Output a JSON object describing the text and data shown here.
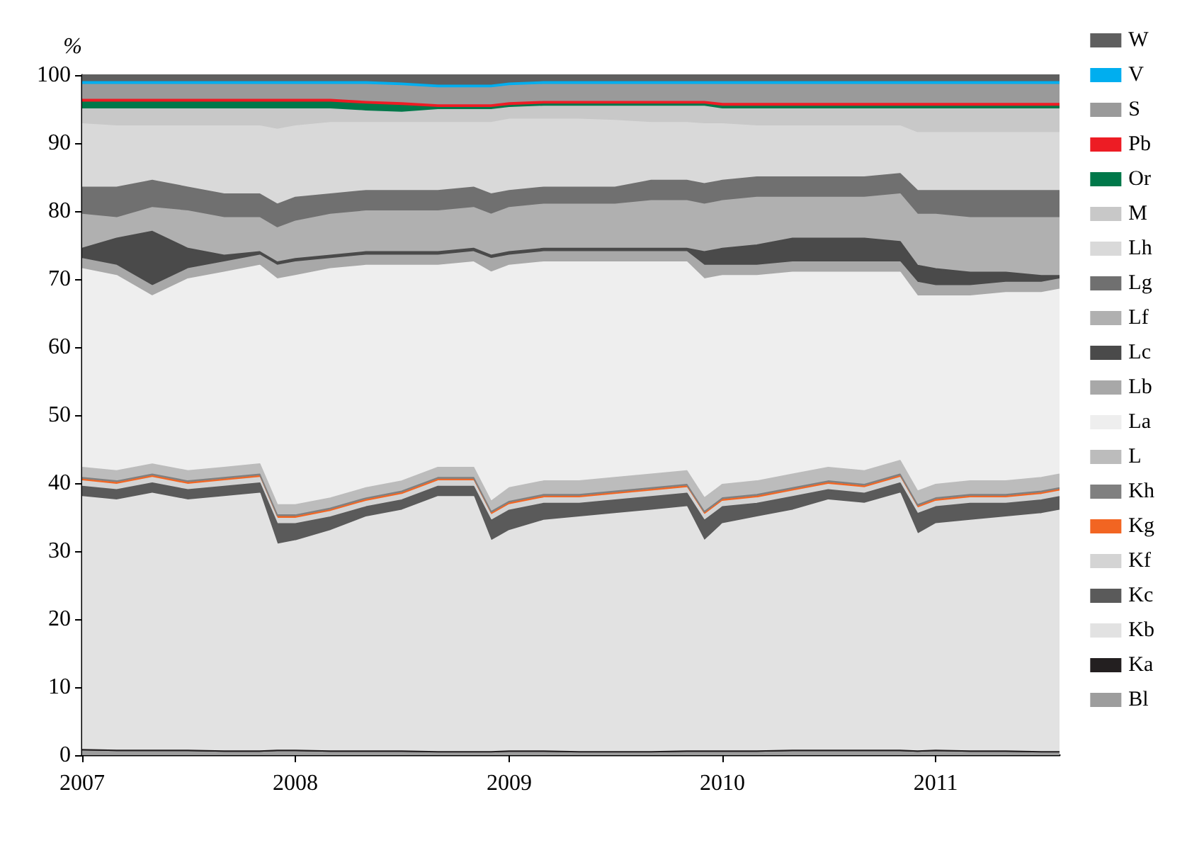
{
  "chart_data": {
    "type": "area",
    "stacked": true,
    "ylabel": "%",
    "legend": "right",
    "x": [
      "2007-01",
      "2007-03",
      "2007-05",
      "2007-07",
      "2007-09",
      "2007-11",
      "2007-12",
      "2008-01",
      "2008-03",
      "2008-05",
      "2008-07",
      "2008-09",
      "2008-11",
      "2008-12",
      "2009-01",
      "2009-03",
      "2009-05",
      "2009-07",
      "2009-09",
      "2009-11",
      "2009-12",
      "2010-01",
      "2010-03",
      "2010-05",
      "2010-07",
      "2010-09",
      "2010-11",
      "2010-12",
      "2011-01",
      "2011-03",
      "2011-05",
      "2011-07",
      "2011-08"
    ],
    "xlim": [
      "2007-01",
      "2011-08"
    ],
    "xticks": [
      "2007",
      "2008",
      "2009",
      "2010",
      "2011"
    ],
    "ylim": [
      0,
      100
    ],
    "yticks": [
      0,
      10,
      20,
      30,
      40,
      50,
      60,
      70,
      80,
      90,
      100
    ],
    "series": [
      {
        "name": "Bl",
        "color": "#9d9d9d",
        "values": [
          0.6,
          0.5,
          0.5,
          0.5,
          0.4,
          0.4,
          0.5,
          0.5,
          0.4,
          0.4,
          0.4,
          0.3,
          0.3,
          0.3,
          0.4,
          0.4,
          0.3,
          0.3,
          0.3,
          0.4,
          0.4,
          0.4,
          0.4,
          0.5,
          0.5,
          0.5,
          0.5,
          0.4,
          0.5,
          0.4,
          0.4,
          0.3,
          0.3
        ]
      },
      {
        "name": "Ka",
        "color": "#231f20",
        "values": [
          0.2,
          0.2,
          0.2,
          0.2,
          0.2,
          0.2,
          0.2,
          0.2,
          0.2,
          0.2,
          0.2,
          0.2,
          0.2,
          0.2,
          0.2,
          0.2,
          0.2,
          0.2,
          0.2,
          0.2,
          0.2,
          0.2,
          0.2,
          0.2,
          0.2,
          0.2,
          0.2,
          0.2,
          0.2,
          0.2,
          0.2,
          0.2,
          0.2
        ]
      },
      {
        "name": "Kb",
        "color": "#e2e2e2",
        "values": [
          37.2,
          36.8,
          37.8,
          36.8,
          37.4,
          37.9,
          30.3,
          30.8,
          32.4,
          34.4,
          35.4,
          37.5,
          37.5,
          31.0,
          32.4,
          33.9,
          34.5,
          35.0,
          35.5,
          35.9,
          30.9,
          33.4,
          34.4,
          35.3,
          36.8,
          36.3,
          37.8,
          31.9,
          33.3,
          33.9,
          34.4,
          35.0,
          35.5
        ]
      },
      {
        "name": "Kc",
        "color": "#5a5a5a",
        "values": [
          1.5,
          1.5,
          1.5,
          1.5,
          1.5,
          1.5,
          3,
          2.5,
          2,
          1.5,
          1.5,
          1.5,
          1.5,
          3,
          3,
          2.5,
          2,
          2,
          2,
          2,
          3,
          2.5,
          2,
          2,
          1.5,
          1.5,
          1.5,
          3,
          2.5,
          2.5,
          2,
          2,
          2
        ]
      },
      {
        "name": "Kf",
        "color": "#d4d4d4",
        "values": [
          0.8,
          0.8,
          0.8,
          0.8,
          0.8,
          0.8,
          0.8,
          0.8,
          0.8,
          0.8,
          0.8,
          0.8,
          0.8,
          0.8,
          0.8,
          0.8,
          0.8,
          0.8,
          0.8,
          0.8,
          0.8,
          0.8,
          0.8,
          0.8,
          0.8,
          0.8,
          0.8,
          0.8,
          0.8,
          0.8,
          0.8,
          0.8,
          0.8
        ]
      },
      {
        "name": "Kg",
        "color": "#f26522",
        "values": [
          0.3,
          0.3,
          0.3,
          0.3,
          0.3,
          0.3,
          0.3,
          0.3,
          0.3,
          0.3,
          0.3,
          0.3,
          0.3,
          0.3,
          0.3,
          0.3,
          0.3,
          0.3,
          0.3,
          0.3,
          0.3,
          0.3,
          0.3,
          0.3,
          0.3,
          0.3,
          0.3,
          0.3,
          0.3,
          0.3,
          0.3,
          0.3,
          0.3
        ]
      },
      {
        "name": "Kh",
        "color": "#808080",
        "values": [
          0.2,
          0.2,
          0.2,
          0.2,
          0.2,
          0.2,
          0.2,
          0.2,
          0.2,
          0.2,
          0.2,
          0.2,
          0.2,
          0.2,
          0.2,
          0.2,
          0.2,
          0.2,
          0.2,
          0.2,
          0.2,
          0.2,
          0.2,
          0.2,
          0.2,
          0.2,
          0.2,
          0.2,
          0.2,
          0.2,
          0.2,
          0.2,
          0.2
        ]
      },
      {
        "name": "L",
        "color": "#bcbcbc",
        "values": [
          1.5,
          1.5,
          1.5,
          1.5,
          1.5,
          1.5,
          1.5,
          1.5,
          1.5,
          1.5,
          1.5,
          1.5,
          1.5,
          1.5,
          2,
          2,
          2,
          2,
          2,
          2,
          2,
          2,
          2,
          2,
          2,
          2,
          2,
          2,
          2,
          2,
          2,
          2,
          2
        ]
      },
      {
        "name": "La",
        "color": "#eeeeee",
        "values": [
          29.2,
          28.7,
          24.7,
          28.2,
          28.7,
          29.2,
          33.2,
          33.7,
          33.7,
          32.7,
          31.7,
          29.7,
          30.2,
          33.7,
          32.7,
          32.2,
          32.2,
          31.7,
          31.2,
          30.7,
          32.2,
          30.7,
          30.2,
          29.7,
          28.7,
          29.2,
          27.7,
          28.7,
          27.7,
          27.2,
          27.7,
          27.2,
          27.2
        ]
      },
      {
        "name": "Lb",
        "color": "#a8a8a8",
        "values": [
          1.5,
          1.5,
          1.5,
          1.5,
          1.5,
          1.5,
          2,
          2,
          1.5,
          1.5,
          1.5,
          1.5,
          1.5,
          2,
          1.5,
          1.5,
          1.5,
          1.5,
          1.5,
          1.5,
          2,
          1.5,
          1.5,
          1.5,
          1.5,
          1.5,
          1.5,
          2,
          1.5,
          1.5,
          1.5,
          1.5,
          1.5
        ]
      },
      {
        "name": "Lc",
        "color": "#4a4a4a",
        "values": [
          1.5,
          4,
          8,
          3,
          1,
          0.5,
          0.5,
          0.5,
          0.5,
          0.5,
          0.5,
          0.5,
          0.5,
          0.5,
          0.5,
          0.5,
          0.5,
          0.5,
          0.5,
          0.5,
          2,
          2.5,
          3,
          3.5,
          3.5,
          3.5,
          3,
          2.5,
          2.5,
          2,
          1.5,
          1,
          0.5
        ]
      },
      {
        "name": "Lf",
        "color": "#b0b0b0",
        "values": [
          5.0,
          3.0,
          3.5,
          5.5,
          5.5,
          5.0,
          5.0,
          5.5,
          6.0,
          6.0,
          6.0,
          6.0,
          6.0,
          6.0,
          6.5,
          6.5,
          6.5,
          6.5,
          7.0,
          7.0,
          7.0,
          7.0,
          7.0,
          6.0,
          6.0,
          6.0,
          7.0,
          7.5,
          8.0,
          8.0,
          8.0,
          8.5,
          8.5
        ]
      },
      {
        "name": "Lg",
        "color": "#707070",
        "values": [
          4,
          4.5,
          4,
          3.5,
          3.5,
          3.5,
          3.5,
          3.5,
          3,
          3,
          3,
          3,
          3,
          3,
          2.5,
          2.5,
          2.5,
          2.5,
          3,
          3,
          3,
          3,
          3,
          3,
          3,
          3,
          3,
          3.5,
          3.5,
          4,
          4,
          4,
          4
        ]
      },
      {
        "name": "Lh",
        "color": "#d9d9d9",
        "values": [
          9.3,
          9.0,
          8.0,
          9.0,
          10.0,
          10.0,
          11.0,
          10.5,
          10.5,
          10.0,
          10.0,
          10.0,
          9.5,
          10.5,
          10.5,
          10.0,
          10.0,
          9.8,
          8.5,
          8.5,
          8.8,
          8.3,
          7.5,
          7.5,
          7.5,
          7.5,
          7.0,
          8.5,
          8.5,
          8.5,
          8.5,
          8.5,
          8.5
        ]
      },
      {
        "name": "M",
        "color": "#c8c8c8",
        "values": [
          2.2,
          2.5,
          2.5,
          2.5,
          2.5,
          2.5,
          3.0,
          2.5,
          2.0,
          1.7,
          1.5,
          1.9,
          1.9,
          1.9,
          1.7,
          1.9,
          1.9,
          2.1,
          2.4,
          2.4,
          2.6,
          2.2,
          2.5,
          2.5,
          2.5,
          2.5,
          2.5,
          3.5,
          3.5,
          3.5,
          3.5,
          3.5,
          3.5
        ]
      },
      {
        "name": "Or",
        "color": "#00784a",
        "values": [
          1,
          1,
          1,
          1,
          1,
          1,
          1,
          1,
          1,
          1,
          1,
          0.3,
          0.3,
          0.3,
          0.3,
          0.3,
          0.3,
          0.3,
          0.3,
          0.3,
          0.3,
          0.4,
          0.4,
          0.4,
          0.4,
          0.4,
          0.4,
          0.4,
          0.4,
          0.4,
          0.4,
          0.4,
          0.4
        ]
      },
      {
        "name": "Pb",
        "color": "#ed1c24",
        "values": [
          0.4,
          0.4,
          0.4,
          0.4,
          0.4,
          0.4,
          0.4,
          0.4,
          0.4,
          0.4,
          0.4,
          0.4,
          0.4,
          0.4,
          0.4,
          0.4,
          0.4,
          0.4,
          0.4,
          0.4,
          0.4,
          0.4,
          0.4,
          0.4,
          0.4,
          0.4,
          0.4,
          0.4,
          0.4,
          0.4,
          0.4,
          0.4,
          0.4
        ]
      },
      {
        "name": "S",
        "color": "#9a9a9a",
        "values": [
          2.2,
          2.2,
          2.2,
          2.2,
          2.2,
          2.2,
          2.2,
          2.2,
          2.2,
          2.5,
          2.5,
          2.5,
          2.5,
          2.5,
          2.5,
          2.5,
          2.5,
          2.5,
          2.5,
          2.5,
          2.5,
          2.8,
          2.8,
          2.8,
          2.8,
          2.8,
          2.8,
          2.8,
          2.8,
          2.8,
          2.8,
          2.8,
          2.8
        ]
      },
      {
        "name": "V",
        "color": "#00aeef",
        "values": [
          0.4,
          0.4,
          0.4,
          0.4,
          0.4,
          0.4,
          0.4,
          0.4,
          0.4,
          0.4,
          0.4,
          0.4,
          0.4,
          0.4,
          0.4,
          0.4,
          0.4,
          0.4,
          0.4,
          0.4,
          0.4,
          0.4,
          0.4,
          0.4,
          0.4,
          0.4,
          0.4,
          0.4,
          0.4,
          0.4,
          0.4,
          0.4,
          0.4
        ]
      },
      {
        "name": "W",
        "color": "#5f5f5f",
        "values": [
          1,
          1,
          1,
          1,
          1,
          1,
          1,
          1,
          1,
          1,
          1.2,
          1.5,
          1.5,
          1.5,
          1.2,
          1,
          1,
          1,
          1,
          1,
          1,
          1,
          1,
          1,
          1,
          1,
          1,
          1,
          1,
          1,
          1,
          1,
          1
        ]
      }
    ]
  }
}
